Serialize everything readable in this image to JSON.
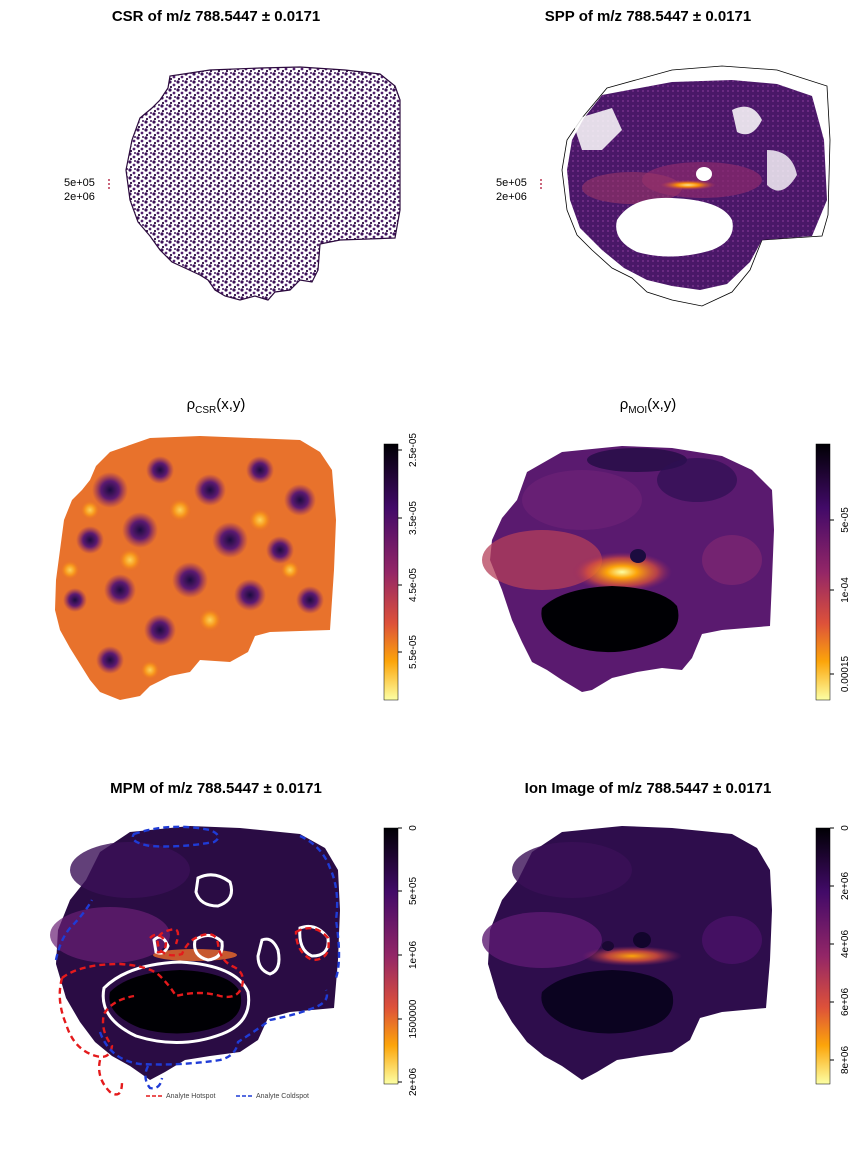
{
  "panels": {
    "csr": {
      "title": "CSR of m/z 788.5447 ± 0.0171",
      "legend": [
        "5e+05",
        "2e+06"
      ]
    },
    "spp": {
      "title": "SPP of m/z 788.5447 ± 0.0171",
      "legend": [
        "5e+05",
        "2e+06"
      ]
    },
    "rho_csr": {
      "symbol": "ρ",
      "sub": "CSR",
      "suffix": "(x,y)",
      "ticks": [
        "2.5e-05",
        "3.5e-05",
        "4.5e-05",
        "5.5e-05"
      ]
    },
    "rho_moi": {
      "symbol": "ρ",
      "sub": "MOI",
      "suffix": "(x,y)",
      "ticks": [
        "5e-05",
        "1e-04",
        "0.00015"
      ]
    },
    "mpm": {
      "title": "MPM of m/z 788.5447 ± 0.0171",
      "ticks": [
        "0",
        "5e+05",
        "1e+06",
        "1500000",
        "2e+06"
      ],
      "legend": {
        "hotspot": "Analyte Hotspot",
        "coldspot": "Analyte Coldspot"
      }
    },
    "ion": {
      "title": "Ion Image of m/z 788.5447 ± 0.0171",
      "ticks": [
        "0",
        "2e+06",
        "4e+06",
        "6e+06",
        "8e+06"
      ]
    }
  },
  "colors": {
    "inferno_dark": "#000004",
    "inferno_purple": "#56106e",
    "inferno_red": "#bb3754",
    "inferno_orange": "#f98e09",
    "inferno_light": "#fcffa4",
    "hotspot": "#e41a1c",
    "coldspot": "#1f3bd6"
  }
}
